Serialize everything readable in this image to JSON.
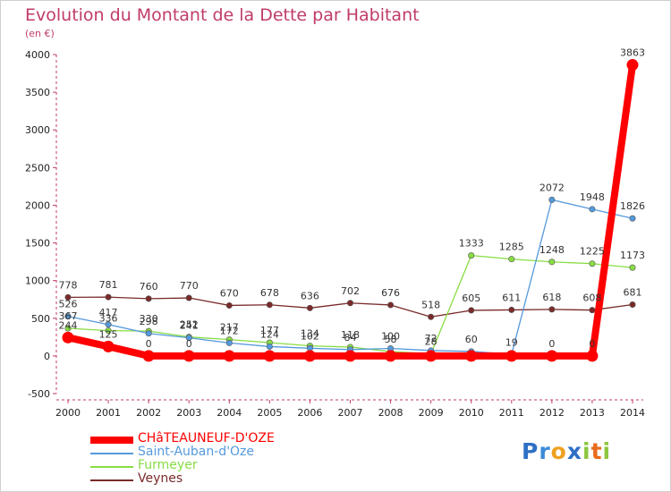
{
  "title": "Evolution du Montant de la Dette par Habitant",
  "unit_label": "(en €)",
  "logo": {
    "text": "Proxiti",
    "letters": [
      {
        "ch": "P",
        "color": "#2f6fc6"
      },
      {
        "ch": "r",
        "color": "#3a8bd8"
      },
      {
        "ch": "o",
        "color": "#f0a020"
      },
      {
        "ch": "x",
        "color": "#2f6fc6"
      },
      {
        "ch": "i",
        "color": "#8cc63f"
      },
      {
        "ch": "t",
        "color": "#e86a1a"
      },
      {
        "ch": "i",
        "color": "#8cc63f"
      }
    ]
  },
  "chart_data": {
    "type": "line",
    "title": "Evolution du Montant de la Dette par Habitant",
    "ylabel": "(en €)",
    "x": [
      "2000",
      "2001",
      "2002",
      "2003",
      "2004",
      "2005",
      "2006",
      "2007",
      "2008",
      "2009",
      "2010",
      "2011",
      "2012",
      "2013",
      "2014"
    ],
    "ylim": [
      -500,
      4000
    ],
    "yticks": [
      -500,
      0,
      500,
      1000,
      1500,
      2000,
      2500,
      3000,
      3500,
      4000
    ],
    "grid": false,
    "legend_position": "bottom-left",
    "series": [
      {
        "name": "CHâTEAUNEUF-D'OZE",
        "color": "#ff0000",
        "values": [
          244,
          125,
          0,
          0,
          0,
          0,
          0,
          0,
          0,
          0,
          0,
          0,
          0,
          0,
          3863
        ],
        "labels": [
          "244",
          "125",
          "0",
          "0",
          "",
          "",
          "",
          "",
          "",
          "",
          "",
          "",
          "0",
          "0",
          "3863"
        ]
      },
      {
        "name": "Saint-Auban-d'Oze",
        "color": "#5599dd",
        "values": [
          526,
          417,
          298,
          241,
          172,
          124,
          102,
          84,
          100,
          72,
          60,
          19,
          2072,
          1948,
          1826
        ],
        "labels": [
          "526",
          "417",
          "298",
          "241",
          "172",
          "124",
          "102",
          "84",
          "100",
          "72",
          "60",
          "19",
          "2072",
          "1948",
          "1826"
        ]
      },
      {
        "name": "Furmeyer",
        "color": "#88dd44",
        "values": [
          367,
          336,
          330,
          252,
          217,
          177,
          134,
          118,
          58,
          28,
          1333,
          1285,
          1248,
          1225,
          1173
        ],
        "labels": [
          "367",
          "336",
          "330",
          "252",
          "217",
          "177",
          "134",
          "118",
          "58",
          "28",
          "1333",
          "1285",
          "1248",
          "1225",
          "1173"
        ]
      },
      {
        "name": "Veynes",
        "color": "#7a2a2a",
        "values": [
          778,
          781,
          760,
          770,
          670,
          678,
          636,
          702,
          676,
          518,
          605,
          611,
          618,
          608,
          681
        ],
        "labels": [
          "778",
          "781",
          "760",
          "770",
          "670",
          "678",
          "636",
          "702",
          "676",
          "518",
          "605",
          "611",
          "618",
          "608",
          "681"
        ]
      }
    ]
  }
}
